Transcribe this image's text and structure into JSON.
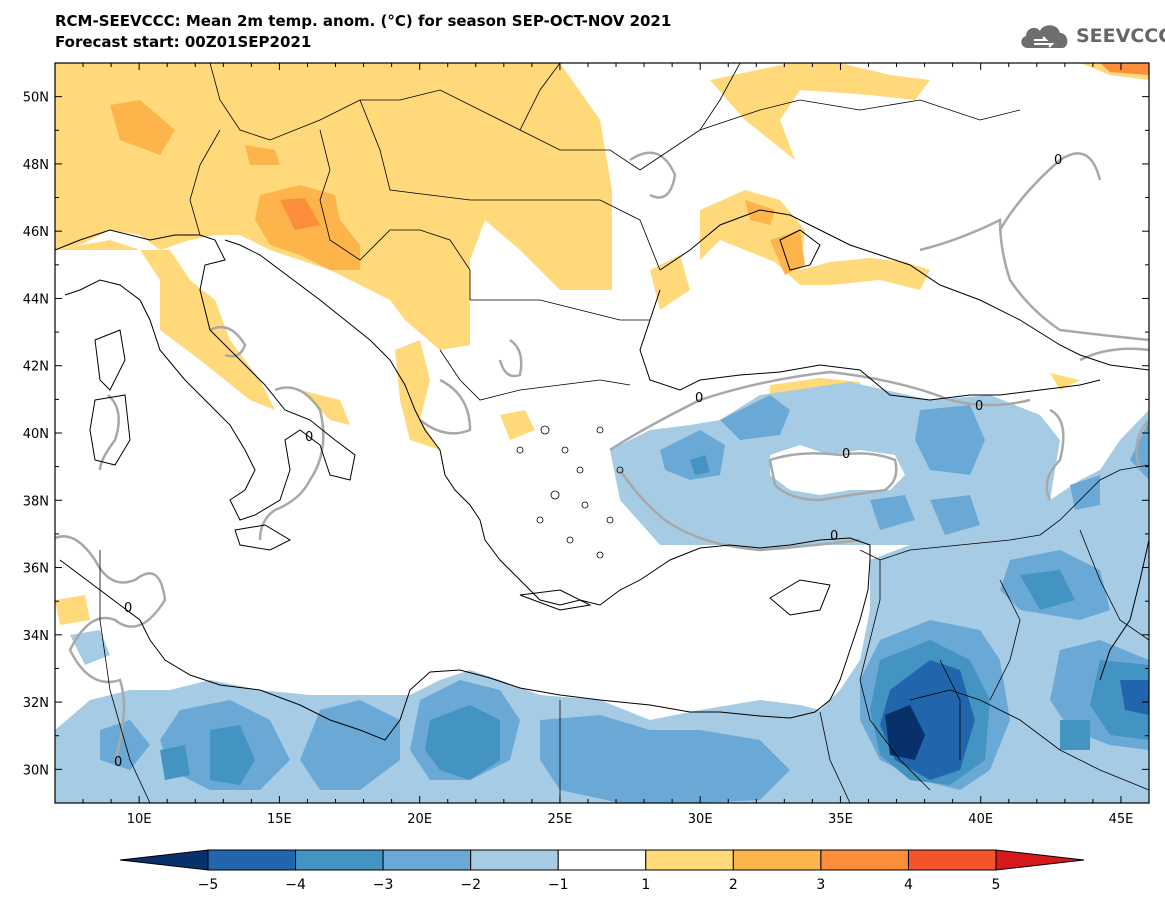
{
  "header": {
    "title_line1": "RCM-SEEVCCC: Mean 2m temp. anom. (°C) for season SEP-OCT-NOV 2021",
    "title_line2": "Forecast start: 00Z01SEP2021"
  },
  "logo": {
    "icon": "cloud-icon",
    "text": "SEEVCCC"
  },
  "map": {
    "lon_range": [
      7,
      46
    ],
    "lat_range": [
      29,
      51
    ],
    "lat_ticks": [
      "50N",
      "48N",
      "46N",
      "44N",
      "42N",
      "40N",
      "38N",
      "36N",
      "34N",
      "32N",
      "30N"
    ],
    "lon_ticks": [
      "10E",
      "15E",
      "20E",
      "25E",
      "30E",
      "35E",
      "40E",
      "45E"
    ],
    "contour_label": "0"
  },
  "colorbar": {
    "labels": [
      "−5",
      "−4",
      "−3",
      "−2",
      "−1",
      "1",
      "2",
      "3",
      "4",
      "5"
    ],
    "colors": [
      "#08306b",
      "#2166ac",
      "#4393c3",
      "#6aa9d6",
      "#a6cce5",
      "#ffffff",
      "#ffd97a",
      "#fdb44b",
      "#fc8d3a",
      "#f4542c",
      "#d7191c"
    ]
  }
}
